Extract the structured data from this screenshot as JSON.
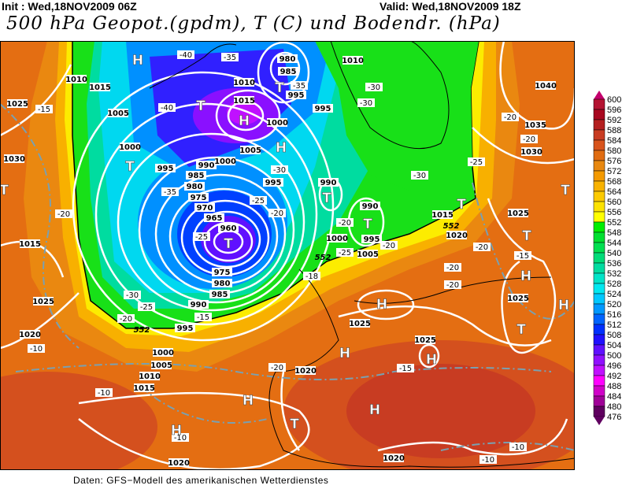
{
  "header": {
    "init": "Init : Wed,18NOV2009 06Z",
    "valid": "Valid: Wed,18NOV2009 18Z",
    "title": "500 hPa Geopot.(gpdm), T (C) und Bodendr. (hPa)"
  },
  "footer": "Daten: GFS−Modell des amerikanischen Wetterdienstes",
  "legend": {
    "values": [
      600,
      596,
      592,
      588,
      584,
      580,
      576,
      572,
      568,
      564,
      560,
      556,
      552,
      548,
      544,
      540,
      536,
      532,
      528,
      524,
      520,
      516,
      512,
      508,
      504,
      500,
      496,
      492,
      488,
      484,
      480,
      476
    ],
    "colors": [
      "#c4006c",
      "#b41432",
      "#a80820",
      "#b42020",
      "#c83c22",
      "#d8541c",
      "#e06c12",
      "#e88810",
      "#f49a00",
      "#f8b200",
      "#fcca00",
      "#fce200",
      "#ffff00",
      "#00ee00",
      "#00e030",
      "#00e050",
      "#00dc78",
      "#00dca0",
      "#00e4c8",
      "#00e8f0",
      "#00c8ff",
      "#0098ff",
      "#0064ff",
      "#0030ff",
      "#2010ff",
      "#6010ff",
      "#9010ff",
      "#c010ff",
      "#ff00ff",
      "#d000c8",
      "#a00098",
      "#600060"
    ]
  },
  "map": {
    "pressure_labels": [
      "1010",
      "1015",
      "1025",
      "1005",
      "1000",
      "995",
      "990",
      "985",
      "980",
      "975",
      "970",
      "965",
      "960",
      "975",
      "980",
      "985",
      "990",
      "995",
      "1000",
      "1005",
      "1010",
      "1015",
      "1020",
      "1025",
      "1020",
      "1015",
      "1030",
      "1010",
      "1015",
      "1000",
      "1005",
      "1000",
      "995",
      "985",
      "980",
      "995",
      "990",
      "990",
      "995",
      "1000",
      "1005",
      "1015",
      "1020",
      "1010",
      "1040",
      "1035",
      "1030",
      "1025",
      "1025",
      "1025",
      "1025",
      "1020",
      "1020",
      "995"
    ],
    "temperature_labels": [
      "-40",
      "-35",
      "-40",
      "-35",
      "-30",
      "-35",
      "-30",
      "-25",
      "-20",
      "-25",
      "-20",
      "-20",
      "-18",
      "-15",
      "-20",
      "-25",
      "-30",
      "-15",
      "-20",
      "-10",
      "-10",
      "-10",
      "-20",
      "-15",
      "-20",
      "-20",
      "-20",
      "-20",
      "-25",
      "-30",
      "-20",
      "-15",
      "-10",
      "-10",
      "-30",
      "-25"
    ],
    "centers": [
      "H",
      "T",
      "H",
      "T",
      "H",
      "T",
      "T",
      "T",
      "T",
      "H",
      "H",
      "H",
      "H",
      "T",
      "H",
      "H",
      "T",
      "T",
      "T",
      "H",
      "H",
      "T",
      "T"
    ],
    "contour_552_labels": [
      "552",
      "552",
      "552"
    ]
  }
}
